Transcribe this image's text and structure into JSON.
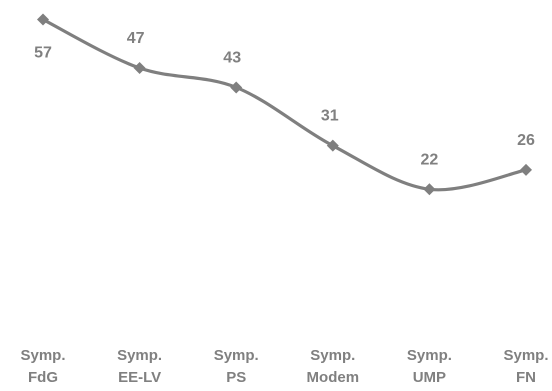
{
  "chart_data": {
    "type": "line",
    "title": "",
    "xlabel": "",
    "ylabel": "",
    "categories": [
      [
        "Symp.",
        "FdG"
      ],
      [
        "Symp.",
        "EE-LV"
      ],
      [
        "Symp.",
        "PS"
      ],
      [
        "Symp.",
        "Modem"
      ],
      [
        "Symp.",
        "UMP"
      ],
      [
        "Symp.",
        "FN"
      ]
    ],
    "series": [
      {
        "values": [
          57,
          47,
          43,
          31,
          22,
          26
        ],
        "color": "#7f7f7f"
      }
    ],
    "ylim": [
      0,
      60
    ],
    "grid": false,
    "legend": "none",
    "data_labels": true,
    "smooth": true,
    "marker": "diamond"
  }
}
